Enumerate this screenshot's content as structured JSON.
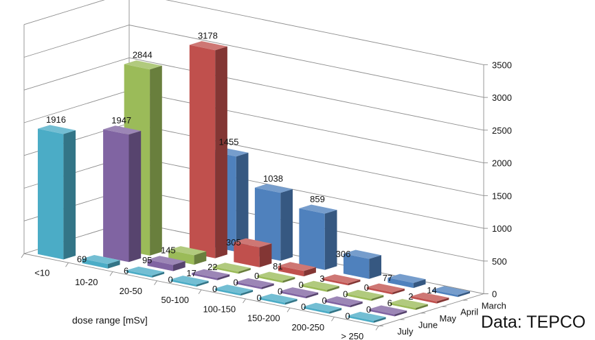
{
  "chart_data": {
    "type": "bar",
    "style": "3d-column",
    "categories": [
      "<10",
      "10-20",
      "20-50",
      "50-100",
      "100-150",
      "150-200",
      "200-250",
      "> 250"
    ],
    "series": [
      {
        "name": "March",
        "values": [
          null,
          null,
          1455,
          1038,
          859,
          306,
          77,
          14
        ],
        "color": "#4f81bd"
      },
      {
        "name": "April",
        "values": [
          null,
          null,
          3178,
          305,
          81,
          3,
          0,
          2
        ],
        "color": "#c0504d"
      },
      {
        "name": "May",
        "values": [
          null,
          2844,
          145,
          22,
          0,
          0,
          0,
          6
        ],
        "color": "#9bbb59"
      },
      {
        "name": "June",
        "values": [
          null,
          1947,
          95,
          17,
          0,
          0,
          0,
          0
        ],
        "color": "#8064a2"
      },
      {
        "name": "July",
        "values": [
          1916,
          69,
          6,
          0,
          0,
          0,
          0,
          0
        ],
        "color": "#4bacc6"
      }
    ],
    "x_axis_title": "dose range [mSv]",
    "y_ticks": [
      0,
      500,
      1000,
      1500,
      2000,
      2500,
      3000,
      3500
    ],
    "ylim": [
      0,
      3500
    ],
    "grid": true
  },
  "credit": "Data: TEPCO"
}
